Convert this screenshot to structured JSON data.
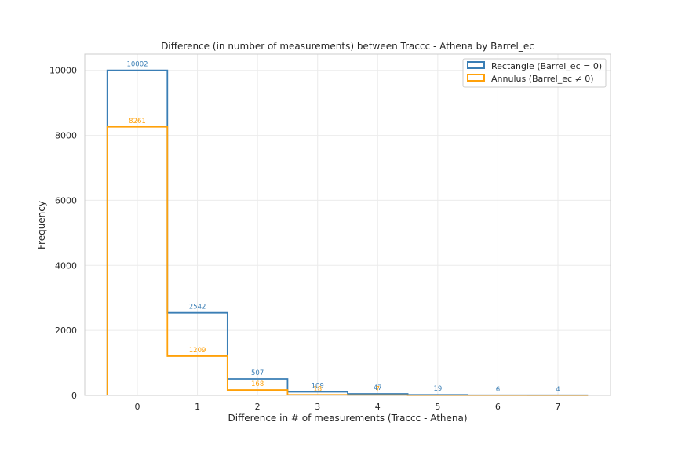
{
  "chart_data": {
    "type": "histogram-step",
    "title": "Difference (in number of measurements) between Traccc - Athena by Barrel_ec",
    "xlabel": "Difference in # of measurements (Traccc - Athena)",
    "ylabel": "Frequency",
    "xlim": [
      -0.875,
      7.875
    ],
    "ylim": [
      0,
      10500
    ],
    "xticks": [
      0,
      1,
      2,
      3,
      4,
      5,
      6,
      7
    ],
    "yticks": [
      0,
      2000,
      4000,
      6000,
      8000,
      10000
    ],
    "grid": true,
    "legend_position": "top-right",
    "categories": [
      0,
      1,
      2,
      3,
      4,
      5,
      6,
      7
    ],
    "series": [
      {
        "name": "Rectangle (Barrel_ec = 0)",
        "color": "#3a7eb5",
        "values": [
          10002,
          2542,
          507,
          109,
          47,
          19,
          6,
          4
        ]
      },
      {
        "name": "Annulus (Barrel_ec ≠ 0)",
        "color": "#ffa10a",
        "values": [
          8261,
          1209,
          168,
          18,
          7,
          0,
          0,
          0
        ],
        "labels": [
          "8261",
          "1209",
          "168",
          "18",
          "7",
          "",
          "",
          ""
        ]
      }
    ]
  }
}
